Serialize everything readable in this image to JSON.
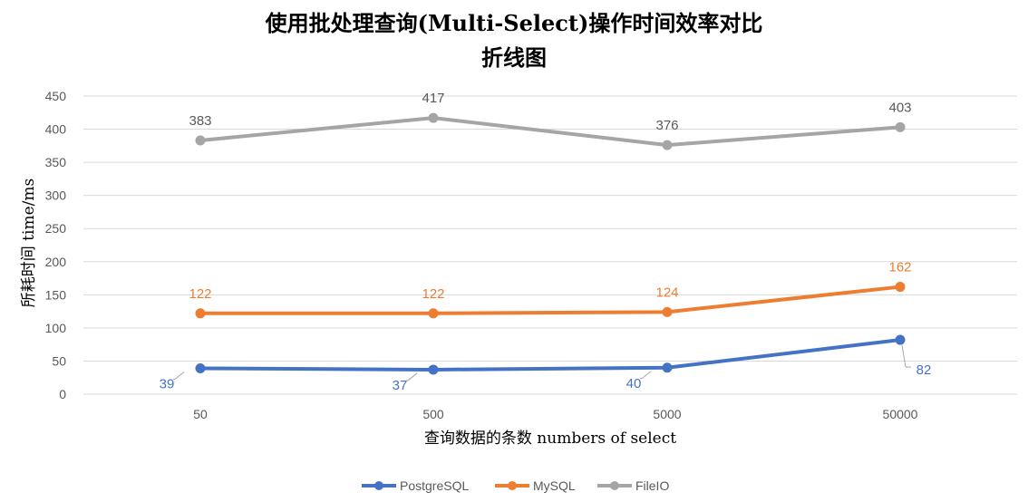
{
  "chart_data": {
    "type": "line",
    "title": "使用批处理查询(Multi-Select)操作时间效率对比",
    "subtitle": "折线图",
    "xlabel": "查询数据的条数 numbers of select",
    "ylabel": "所耗时间 time/ms",
    "categories": [
      "50",
      "500",
      "5000",
      "50000"
    ],
    "ylim": [
      0,
      450
    ],
    "yticks": [
      0,
      50,
      100,
      150,
      200,
      250,
      300,
      350,
      400,
      450
    ],
    "grid": true,
    "legend_position": "bottom",
    "series": [
      {
        "name": "PostgreSQL",
        "values": [
          39,
          37,
          40,
          82
        ],
        "color": "#4472C4"
      },
      {
        "name": "MySQL",
        "values": [
          122,
          122,
          124,
          162
        ],
        "color": "#ED7D31"
      },
      {
        "name": "FileIO",
        "values": [
          383,
          417,
          376,
          403
        ],
        "color": "#A5A5A5"
      }
    ]
  }
}
